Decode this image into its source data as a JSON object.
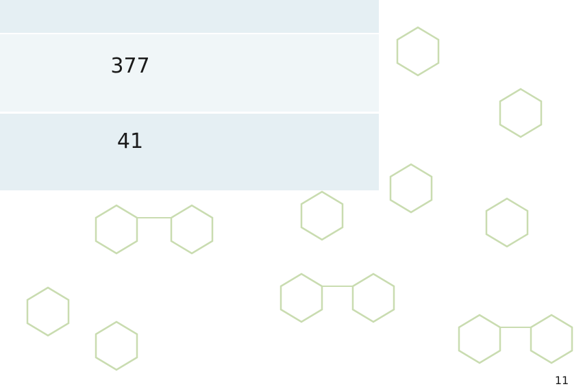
{
  "table": {
    "rows": [
      [
        "377"
      ],
      [
        "41"
      ]
    ]
  },
  "page_number": "11"
}
